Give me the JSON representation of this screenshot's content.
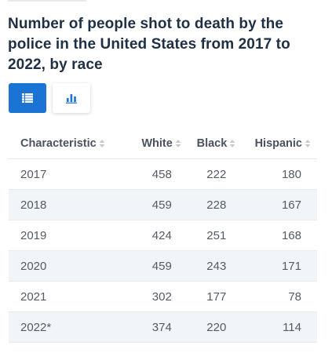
{
  "title": "Number of people shot to death by the police in the United States from 2017 to 2022, by race",
  "toggle": {
    "table_icon": "table-grid-icon",
    "chart_icon": "bar-chart-icon",
    "active_color": "#1b73d3"
  },
  "chart_data": {
    "type": "table",
    "columns": [
      "Characteristic",
      "White",
      "Black",
      "Hispanic"
    ],
    "rows": [
      [
        "2017",
        "458",
        "222",
        "180"
      ],
      [
        "2018",
        "459",
        "228",
        "167"
      ],
      [
        "2019",
        "424",
        "251",
        "168"
      ],
      [
        "2020",
        "459",
        "243",
        "171"
      ],
      [
        "2021",
        "302",
        "177",
        "78"
      ],
      [
        "2022*",
        "374",
        "220",
        "114"
      ]
    ]
  }
}
